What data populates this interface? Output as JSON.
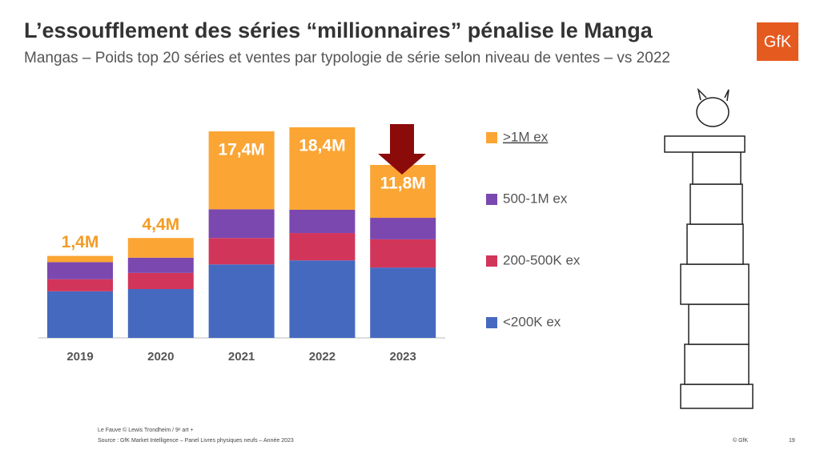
{
  "header": {
    "title": "L’essoufflement des séries “millionnaires” pénalise le Manga",
    "subtitle": "Mangas – Poids top 20 séries et ventes par typologie de série selon niveau de ventes – vs 2022",
    "logo": "GfK"
  },
  "chart_data": {
    "type": "stacked-bar",
    "categories": [
      "2019",
      "2020",
      "2021",
      "2022",
      "2023"
    ],
    "series": [
      {
        "name": "<200K ex",
        "color": "#4669c0",
        "values": [
          10.4,
          10.9,
          16.4,
          17.3,
          15.7
        ]
      },
      {
        "name": "200-500K ex",
        "color": "#d2355a",
        "values": [
          2.7,
          3.6,
          5.9,
          6.1,
          6.3
        ]
      },
      {
        "name": "500-1M ex",
        "color": "#7b48b0",
        "values": [
          3.8,
          3.4,
          6.4,
          5.2,
          4.8
        ]
      },
      {
        "name": ">1M ex",
        "color": "#fba534",
        "values": [
          1.4,
          4.4,
          17.4,
          18.4,
          11.8
        ],
        "value_labels": [
          "1,4M",
          "4,4M",
          "17,4M",
          "18,4M",
          "11,8M"
        ]
      }
    ]
  },
  "footer": {
    "credit": "Le Fauve © Lewis Trondheim / 9ᵉ art +",
    "source": "Source : GfK Market Intelligence – Panel Livres physiques neufs – Année 2023",
    "copyright": "© GfK",
    "page": 19
  }
}
